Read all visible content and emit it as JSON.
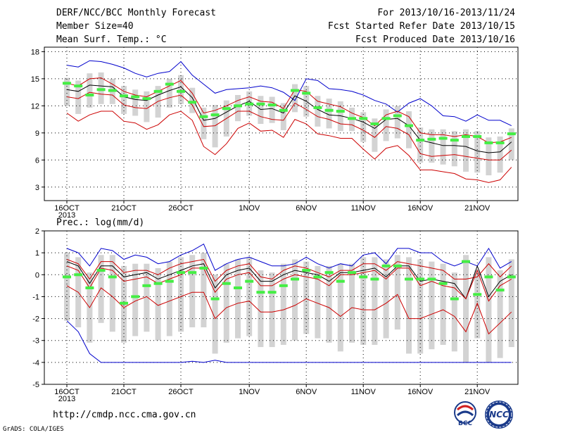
{
  "header": {
    "title": "DERF/NCC/BCC Monthly Forecast",
    "member_size": "Member Size=40",
    "variable": "Mean Surf. Temp.: °C",
    "period": "For 2013/10/16-2013/11/24",
    "started": "Fcst Started Refer Date 2013/10/15",
    "produced": "Fcst Produced Date 2013/10/16"
  },
  "footer": {
    "url": "http://cmdp.ncc.cma.gov.cn",
    "credit": "GrADS: COLA/IGES",
    "logo_bcc": "BCC",
    "logo_ncc": "NCC"
  },
  "colors": {
    "max_line": "#0000cc",
    "mean_line": "#000000",
    "spread_line": "#cc0000",
    "box": "#d3d3d3",
    "marker": "#44ee44"
  },
  "chart_data": [
    {
      "type": "box-line",
      "title": "Mean Surf. Temp.: °C",
      "ylim": [
        1.5,
        18.5
      ],
      "yticks": [
        3,
        6,
        9,
        12,
        15,
        18
      ],
      "x_tick_labels": [
        "16OCT\n2013",
        "21OCT",
        "26OCT",
        "1NOV",
        "6NOV",
        "11NOV",
        "16NOV",
        "21NOV"
      ],
      "x_tick_days": [
        0,
        5,
        10,
        16,
        21,
        26,
        31,
        36
      ],
      "days": 40,
      "series": [
        {
          "role": "upper",
          "values": [
            16.5,
            16.3,
            17.0,
            16.9,
            16.6,
            16.2,
            15.6,
            15.2,
            15.6,
            15.8,
            16.9,
            15.4,
            14.4,
            13.4,
            13.8,
            13.9,
            14.0,
            14.2,
            14.0,
            13.5,
            12.6,
            15.0,
            14.8,
            13.9,
            13.8,
            13.6,
            13.2,
            12.6,
            12.2,
            11.3,
            12.3,
            12.8,
            12.0,
            10.9,
            10.8,
            10.3,
            11.0,
            10.4,
            10.4,
            9.8
          ]
        },
        {
          "role": "upper-inner",
          "values": [
            14.5,
            14.2,
            15.0,
            15.1,
            14.4,
            13.6,
            13.2,
            13.0,
            13.6,
            14.2,
            14.8,
            13.4,
            11.2,
            11.5,
            12.0,
            12.6,
            13.0,
            12.5,
            12.4,
            11.7,
            13.8,
            13.6,
            12.5,
            12.2,
            11.9,
            11.2,
            10.7,
            9.8,
            11.0,
            11.4,
            10.8,
            9.0,
            8.8,
            8.8,
            8.6,
            8.8,
            8.6,
            7.9,
            8.0,
            8.5
          ]
        },
        {
          "role": "mean",
          "values": [
            13.8,
            13.6,
            14.3,
            14.2,
            14.1,
            13.0,
            12.7,
            12.6,
            13.2,
            13.7,
            14.1,
            12.9,
            10.4,
            10.6,
            11.3,
            12.0,
            12.5,
            11.6,
            11.7,
            11.2,
            13.1,
            12.5,
            11.6,
            11.0,
            10.9,
            10.6,
            10.2,
            9.5,
            10.5,
            10.6,
            9.8,
            8.2,
            7.9,
            7.6,
            7.6,
            7.5,
            7.0,
            6.8,
            6.9,
            8.0
          ]
        },
        {
          "role": "lower-inner",
          "values": [
            13.0,
            12.8,
            13.5,
            13.3,
            13.2,
            12.1,
            11.8,
            11.7,
            12.5,
            12.9,
            13.2,
            12.1,
            9.7,
            9.8,
            10.6,
            11.4,
            11.4,
            10.8,
            10.5,
            10.4,
            12.3,
            11.6,
            10.8,
            10.5,
            10.0,
            9.9,
            9.3,
            8.5,
            9.7,
            9.5,
            8.8,
            6.7,
            6.4,
            6.5,
            6.6,
            6.4,
            6.2,
            6.0,
            6.0,
            7.1
          ]
        },
        {
          "role": "lower",
          "values": [
            11.2,
            10.3,
            11.0,
            11.4,
            11.4,
            10.3,
            10.1,
            9.4,
            9.9,
            11.0,
            11.4,
            10.4,
            7.5,
            6.6,
            7.8,
            9.5,
            10.1,
            9.2,
            9.3,
            8.5,
            10.5,
            10.0,
            8.9,
            8.7,
            8.4,
            8.4,
            7.2,
            6.1,
            7.3,
            7.6,
            6.5,
            4.9,
            4.9,
            4.7,
            4.5,
            3.9,
            3.8,
            3.5,
            3.8,
            5.2
          ]
        }
      ],
      "markers": [
        14.5,
        14.2,
        13.2,
        13.8,
        13.7,
        13.1,
        13.0,
        12.8,
        13.6,
        14.4,
        13.6,
        12.4,
        10.8,
        11.0,
        11.7,
        12.0,
        12.2,
        12.2,
        12.1,
        11.5,
        13.7,
        13.4,
        11.8,
        11.5,
        11.4,
        10.6,
        10.6,
        10.0,
        10.6,
        10.9,
        9.8,
        8.2,
        8.3,
        8.4,
        8.2,
        8.6,
        8.6,
        7.9,
        7.9,
        8.9
      ]
    },
    {
      "type": "box-line",
      "title": "Prec.: log(mm/d)",
      "ylim": [
        -5,
        2
      ],
      "yticks": [
        -5,
        -4,
        -3,
        -2,
        -1,
        0,
        1,
        2
      ],
      "x_tick_labels": [
        "16OCT\n2013",
        "21OCT",
        "26OCT",
        "1NOV",
        "6NOV",
        "11NOV",
        "16NOV",
        "21NOV"
      ],
      "x_tick_days": [
        0,
        5,
        10,
        16,
        21,
        26,
        31,
        36
      ],
      "days": 40,
      "series": [
        {
          "role": "upper",
          "values": [
            1.2,
            1.0,
            0.4,
            1.2,
            1.1,
            0.7,
            0.9,
            0.8,
            0.5,
            0.6,
            0.9,
            1.1,
            1.4,
            0.2,
            0.5,
            0.7,
            0.8,
            0.6,
            0.4,
            0.4,
            0.5,
            0.8,
            0.5,
            0.3,
            0.5,
            0.4,
            0.9,
            1.0,
            0.5,
            1.2,
            1.2,
            1.0,
            1.0,
            0.6,
            0.4,
            0.6,
            0.4,
            1.2,
            0.3,
            0.6
          ]
        },
        {
          "role": "upper-inner",
          "values": [
            0.7,
            0.5,
            -0.2,
            0.6,
            0.6,
            0.1,
            0.2,
            0.2,
            0.0,
            0.3,
            0.5,
            0.6,
            0.7,
            -0.3,
            0.2,
            0.4,
            0.5,
            -0.1,
            -0.2,
            0.2,
            0.4,
            0.3,
            0.1,
            -0.1,
            0.2,
            0.2,
            0.5,
            0.5,
            0.2,
            0.6,
            0.5,
            0.4,
            0.3,
            0.2,
            -0.2,
            -0.2,
            -0.1,
            0.5,
            -0.1,
            0.4
          ]
        },
        {
          "role": "mean",
          "values": [
            0.6,
            0.4,
            -0.4,
            0.4,
            0.4,
            -0.1,
            0.0,
            0.1,
            -0.2,
            0.0,
            0.2,
            0.4,
            0.5,
            -0.6,
            0.0,
            0.2,
            0.3,
            -0.3,
            -0.3,
            0.0,
            0.2,
            0.1,
            0.0,
            -0.3,
            0.1,
            0.1,
            0.2,
            0.3,
            -0.1,
            0.4,
            0.4,
            -0.3,
            -0.2,
            -0.3,
            -0.4,
            -1.1,
            0.4,
            -1.0,
            -0.3,
            0.0
          ]
        },
        {
          "role": "lower-inner",
          "values": [
            0.4,
            0.2,
            -0.6,
            0.3,
            0.2,
            -0.3,
            -0.2,
            -0.1,
            -0.4,
            -0.2,
            0.0,
            0.3,
            0.3,
            -0.8,
            -0.2,
            0.0,
            0.1,
            -0.5,
            -0.5,
            -0.2,
            0.0,
            -0.1,
            -0.2,
            -0.5,
            0.0,
            0.0,
            0.1,
            0.2,
            -0.2,
            0.3,
            0.3,
            -0.5,
            -0.3,
            -0.5,
            -0.6,
            -1.1,
            0.2,
            -1.2,
            -0.5,
            -0.2
          ]
        },
        {
          "role": "lower",
          "values": [
            -0.5,
            -0.8,
            -1.5,
            -0.6,
            -1.0,
            -1.5,
            -1.2,
            -1.0,
            -1.4,
            -1.2,
            -1.0,
            -0.8,
            -0.8,
            -2.0,
            -1.5,
            -1.3,
            -1.2,
            -1.7,
            -1.7,
            -1.6,
            -1.4,
            -1.1,
            -1.3,
            -1.5,
            -1.9,
            -1.5,
            -1.6,
            -1.6,
            -1.3,
            -0.9,
            -2.0,
            -2.0,
            -1.8,
            -1.6,
            -1.9,
            -2.6,
            -1.3,
            -2.7,
            -2.2,
            -1.7
          ]
        },
        {
          "role": "bottom",
          "values": [
            -2.1,
            -2.6,
            -3.6,
            -4.0,
            -4.0,
            -4.0,
            -4.0,
            -4.0,
            -4.0,
            -4.0,
            -4.0,
            -3.95,
            -4.0,
            -3.9,
            -4.0,
            -4.0,
            -4.0,
            -4.0,
            -4.0,
            -4.0,
            -4.0,
            -4.0,
            -4.0,
            -4.0,
            -4.0,
            -4.0,
            -4.0,
            -4.0,
            -4.0,
            -4.0,
            -4.0,
            -4.0,
            -4.0,
            -4.0,
            -4.0,
            -4.0,
            -4.0,
            -4.0,
            -4.0,
            -4.0
          ]
        }
      ],
      "markers": [
        -0.1,
        0.0,
        -0.6,
        0.2,
        -0.1,
        -1.3,
        -1.0,
        -0.5,
        -0.4,
        -0.3,
        0.1,
        0.1,
        0.3,
        -1.1,
        -0.4,
        -0.6,
        -0.3,
        -0.8,
        -0.8,
        -0.5,
        -0.2,
        0.2,
        -0.1,
        0.1,
        -0.3,
        0.1,
        -0.1,
        -0.2,
        0.4,
        0.4,
        -0.2,
        -0.2,
        -0.2,
        -0.4,
        -1.1,
        0.6,
        -0.9,
        -0.1,
        -0.7,
        -0.1
      ]
    }
  ]
}
